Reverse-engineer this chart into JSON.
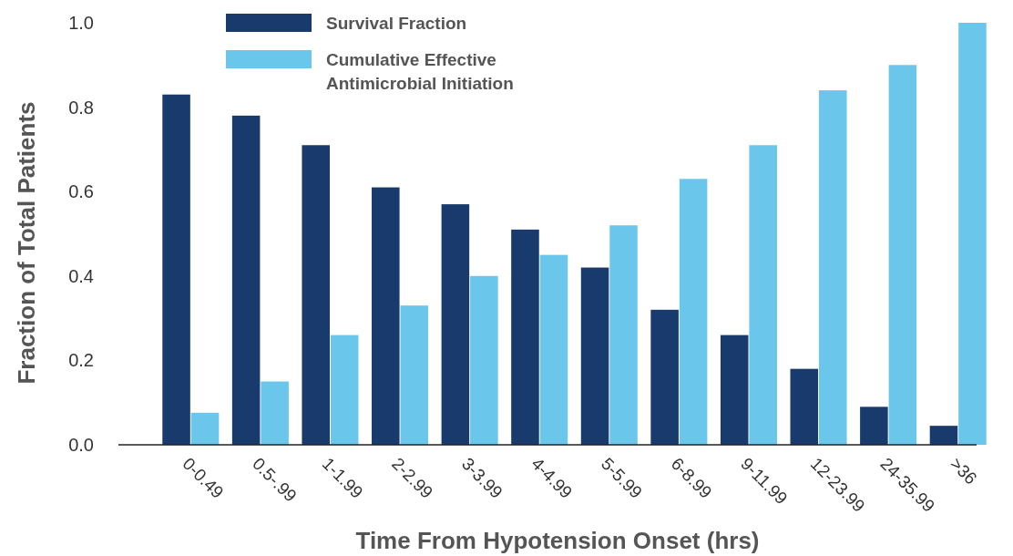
{
  "chart_data": {
    "type": "bar",
    "xlabel": "Time From Hypotension Onset (hrs)",
    "ylabel": "Fraction of Total Patients",
    "categories": [
      "0-0.49",
      "0.5-.99",
      "1-1.99",
      "2-2.99",
      "3-3.99",
      "4-4.99",
      "5-5.99",
      "6-8.99",
      "9-11.99",
      "12-23.99",
      "24-35.99",
      ">36"
    ],
    "series": [
      {
        "name": "Survival Fraction",
        "color": "#183a6c",
        "values": [
          0.83,
          0.78,
          0.71,
          0.61,
          0.57,
          0.51,
          0.42,
          0.32,
          0.26,
          0.18,
          0.09,
          0.045
        ]
      },
      {
        "name": "Cumulative Effective Antimicrobial Initiation",
        "color": "#6ac6ea",
        "values": [
          0.076,
          0.15,
          0.26,
          0.33,
          0.4,
          0.45,
          0.52,
          0.63,
          0.71,
          0.84,
          0.9,
          1.0
        ]
      }
    ],
    "ylim": [
      0,
      1
    ],
    "yticks": [
      {
        "value": 0,
        "label": "0.0"
      },
      0.2,
      0.4,
      0.6,
      0.8,
      {
        "value": 1,
        "label": "1.0"
      }
    ],
    "grid": false,
    "legend": "top"
  }
}
